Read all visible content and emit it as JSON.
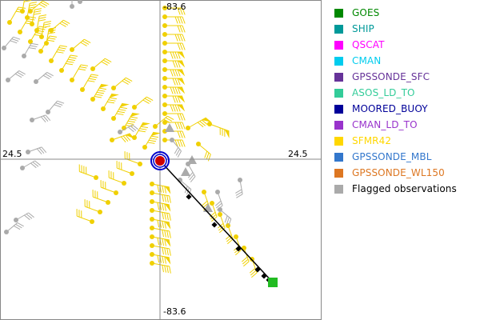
{
  "axes": {
    "top_label": "-83.6",
    "bottom_label": "-83.6",
    "left_label": "24.5",
    "right_label": "24.5"
  },
  "legend": {
    "items": [
      {
        "label": "GOES",
        "color": "#008800"
      },
      {
        "label": "SHIP",
        "color": "#009999"
      },
      {
        "label": "QSCAT",
        "color": "#ff00ff"
      },
      {
        "label": "CMAN",
        "color": "#00ccee"
      },
      {
        "label": "GPSSONDE_SFC",
        "color": "#663399"
      },
      {
        "label": "ASOS_LD_TO",
        "color": "#33cc99"
      },
      {
        "label": "MOORED_BUOY",
        "color": "#000099"
      },
      {
        "label": "CMAN_LD_TO",
        "color": "#9933cc"
      },
      {
        "label": "SFMR42",
        "color": "#ffd700"
      },
      {
        "label": "GPSSONDE_MBL",
        "color": "#3377cc"
      },
      {
        "label": "GPSSONDE_WL150",
        "color": "#dd7722"
      },
      {
        "label": "Flagged observations",
        "color": "#aaaaaa"
      }
    ]
  },
  "colors": {
    "sfmr": "#f0d000",
    "flagged": "#aaaaaa",
    "track": "#000000",
    "center_ring": "#0000cc",
    "center_fill": "#cc0000",
    "goes": "#22bb22",
    "grid": "#888888"
  }
}
